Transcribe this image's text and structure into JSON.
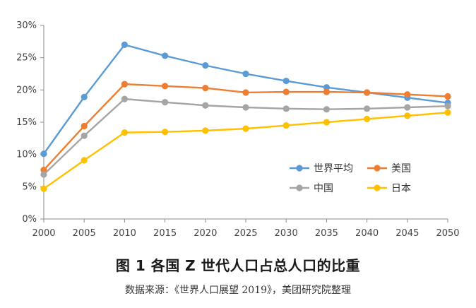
{
  "caption": {
    "title": "图 1  各国 Z 世代人口占总人口的比重",
    "source": "数据来源：《世界人口展望 2019》，美团研究院整理"
  },
  "chart_data": {
    "type": "line",
    "title": "",
    "xlabel": "",
    "ylabel": "",
    "x": [
      "2000",
      "2005",
      "2010",
      "2015",
      "2020",
      "2025",
      "2030",
      "2035",
      "2040",
      "2045",
      "2050"
    ],
    "ylim": [
      0,
      30
    ],
    "yticks": [
      "0%",
      "5%",
      "10%",
      "15%",
      "20%",
      "25%",
      "30%"
    ],
    "grid": false,
    "legend_position": "lower-right",
    "series": [
      {
        "name": "世界平均",
        "color": "#5B9BD5",
        "values": [
          10.1,
          18.9,
          27.0,
          25.3,
          23.8,
          22.5,
          21.4,
          20.4,
          19.6,
          18.8,
          18.0
        ]
      },
      {
        "name": "美国",
        "color": "#ED7D31",
        "values": [
          7.6,
          14.4,
          20.9,
          20.6,
          20.3,
          19.6,
          19.7,
          19.7,
          19.6,
          19.3,
          19.0
        ]
      },
      {
        "name": "中国",
        "color": "#A5A5A5",
        "values": [
          6.9,
          12.9,
          18.6,
          18.1,
          17.6,
          17.3,
          17.1,
          17.0,
          17.1,
          17.3,
          17.5
        ]
      },
      {
        "name": "日本",
        "color": "#FFC000",
        "values": [
          4.7,
          9.1,
          13.4,
          13.5,
          13.7,
          14.0,
          14.5,
          15.0,
          15.5,
          16.0,
          16.5
        ]
      }
    ]
  }
}
